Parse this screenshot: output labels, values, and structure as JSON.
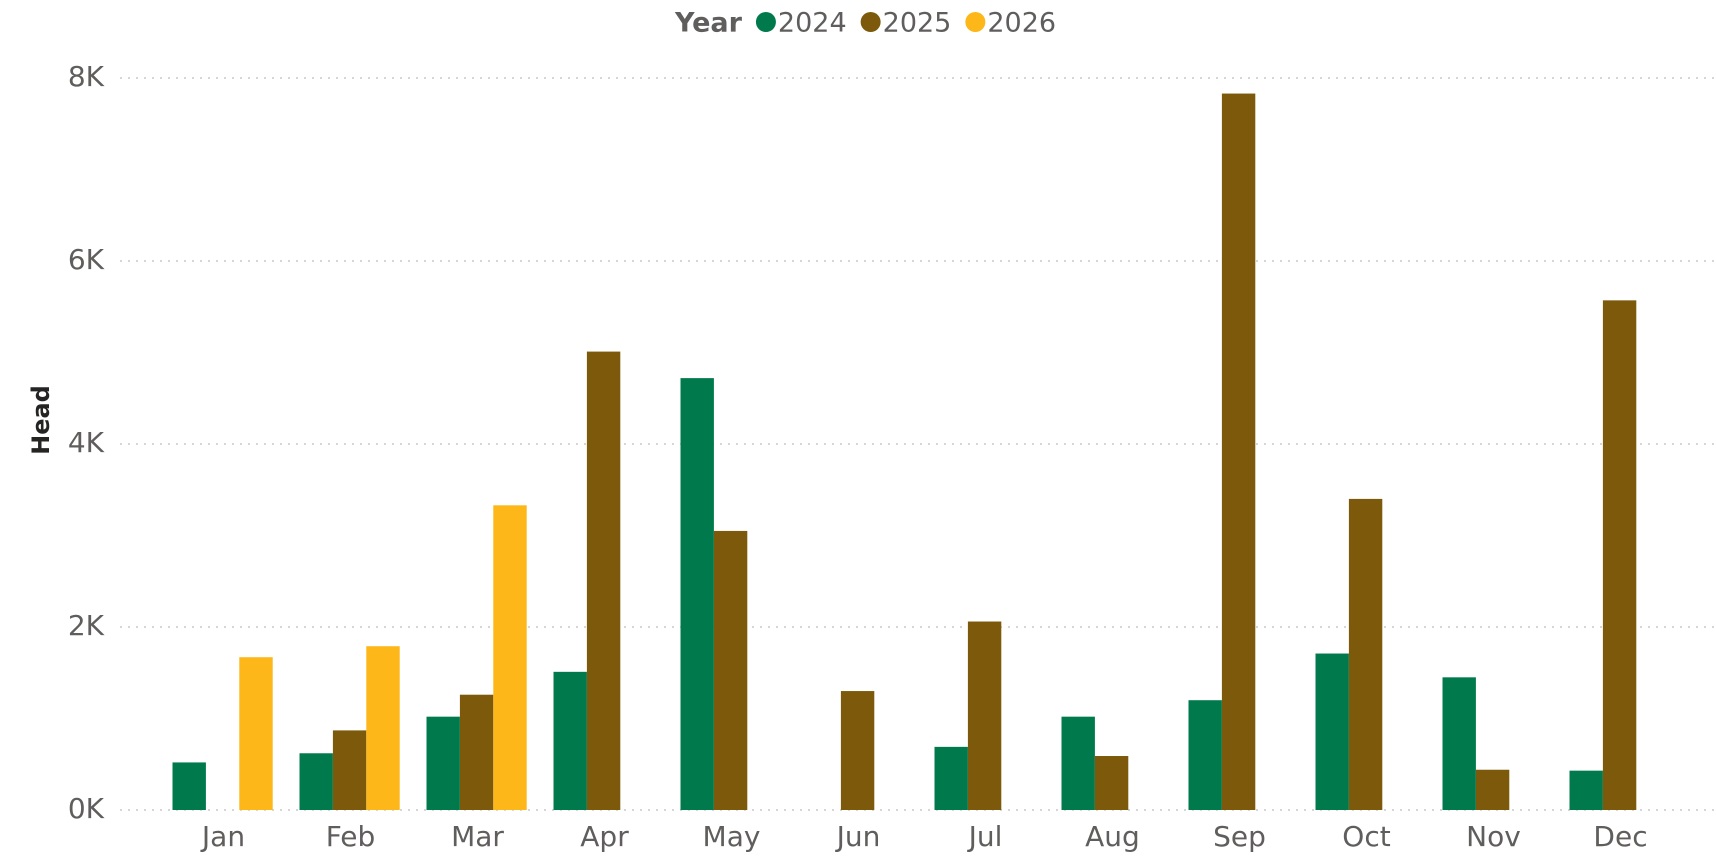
{
  "chart_data": {
    "type": "bar",
    "legend_title": "Year",
    "y_axis_label": "Head",
    "categories": [
      "Jan",
      "Feb",
      "Mar",
      "Apr",
      "May",
      "Jun",
      "Jul",
      "Aug",
      "Sep",
      "Oct",
      "Nov",
      "Dec"
    ],
    "series": [
      {
        "name": "2024",
        "color": "#007a4c",
        "values": [
          520,
          620,
          1020,
          1510,
          4720,
          null,
          690,
          1020,
          1200,
          1710,
          1450,
          430
        ]
      },
      {
        "name": "2025",
        "color": "#7d5a0b",
        "values": [
          null,
          870,
          1260,
          5010,
          3050,
          1300,
          2060,
          590,
          7830,
          3400,
          440,
          5570
        ]
      },
      {
        "name": "2026",
        "color": "#fdb719",
        "values": [
          1670,
          1790,
          3330,
          null,
          null,
          null,
          null,
          null,
          null,
          null,
          null,
          null
        ]
      }
    ],
    "ylim": [
      0,
      8000
    ],
    "yticks": [
      {
        "value": 0,
        "label": "0K"
      },
      {
        "value": 2000,
        "label": "2K"
      },
      {
        "value": 4000,
        "label": "4K"
      },
      {
        "value": 6000,
        "label": "6K"
      },
      {
        "value": 8000,
        "label": "8K"
      }
    ],
    "grid": true
  }
}
